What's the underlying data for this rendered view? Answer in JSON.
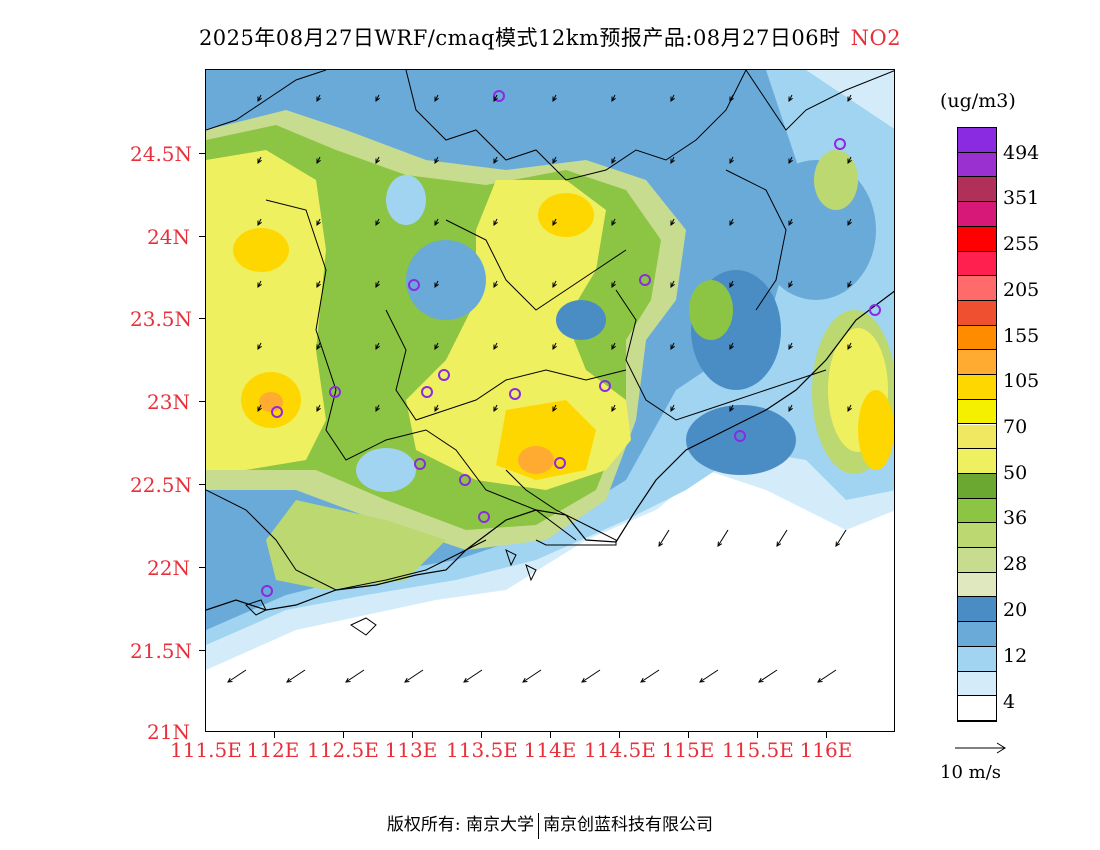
{
  "title": {
    "main": "2025年08月27日WRF/cmaq模式12km预报产品:08月27日06时",
    "species": "NO2"
  },
  "axes": {
    "lat_labels": [
      "24.5N",
      "24N",
      "23.5N",
      "23N",
      "22.5N",
      "22N",
      "21.5N",
      "21N"
    ],
    "lon_labels": [
      "111.5E",
      "112E",
      "112.5E",
      "113E",
      "113.5E",
      "114E",
      "114.5E",
      "115E",
      "115.5E",
      "116E"
    ]
  },
  "legend": {
    "unit": "(ug/m3)",
    "levels": [
      "494",
      "351",
      "255",
      "205",
      "155",
      "105",
      "70",
      "50",
      "36",
      "28",
      "20",
      "12",
      "4"
    ],
    "colors": [
      "#8a2be2",
      "#9b30d0",
      "#b0305a",
      "#d81878",
      "#ff0000",
      "#ff2050",
      "#ff6a6a",
      "#ee5030",
      "#ff8c00",
      "#ffaa30",
      "#ffd700",
      "#f5f000",
      "#f0e860",
      "#eef060",
      "#6aa832",
      "#8cc444",
      "#bcd870",
      "#c8dc90",
      "#e0e8c0",
      "#4a8cc4",
      "#6aaad8",
      "#a0d4f0",
      "#d4ecfa",
      "#ffffff"
    ]
  },
  "wind_reference": {
    "label": "10 m/s"
  },
  "footer": {
    "left": "版权所有: 南京大学",
    "right": "南京创蓝科技有限公司"
  }
}
